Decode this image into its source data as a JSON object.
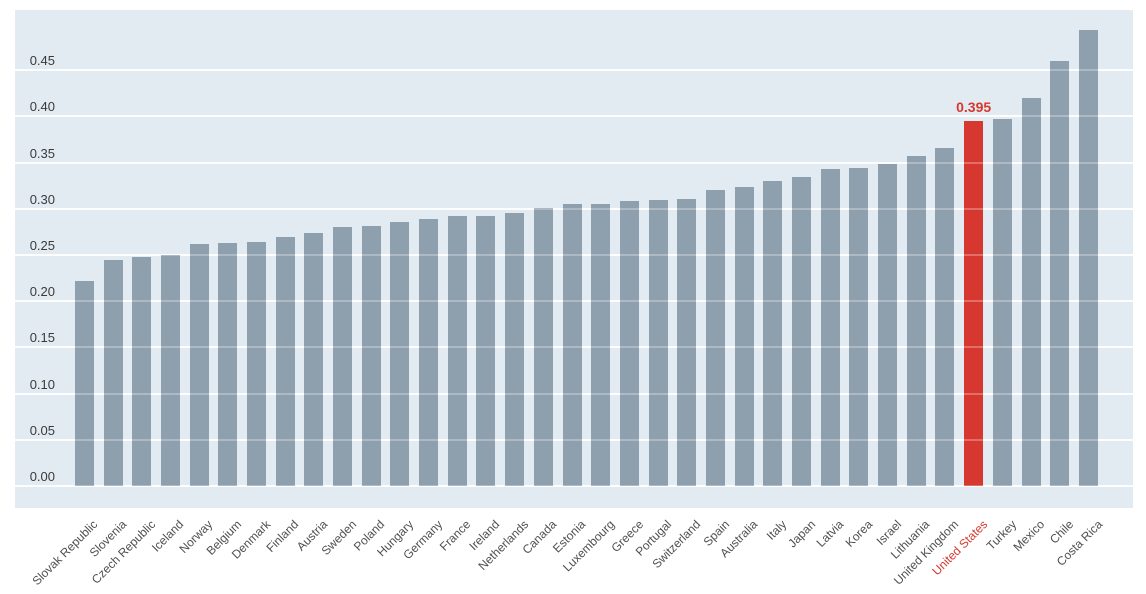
{
  "chart_data": {
    "type": "bar",
    "title": "",
    "xlabel": "",
    "ylabel": "",
    "categories": [
      "Slovak Republic",
      "Slovenia",
      "Czech Republic",
      "Iceland",
      "Norway",
      "Belgium",
      "Denmark",
      "Finland",
      "Austria",
      "Sweden",
      "Poland",
      "Hungary",
      "Germany",
      "France",
      "Ireland",
      "Netherlands",
      "Canada",
      "Estonia",
      "Luxembourg",
      "Greece",
      "Portugal",
      "Switzerland",
      "Spain",
      "Australia",
      "Italy",
      "Japan",
      "Latvia",
      "Korea",
      "Israel",
      "Lithuania",
      "United Kingdom",
      "United States",
      "Turkey",
      "Mexico",
      "Chile",
      "Costa Rica"
    ],
    "values": [
      0.222,
      0.245,
      0.248,
      0.25,
      0.262,
      0.263,
      0.264,
      0.269,
      0.274,
      0.28,
      0.281,
      0.286,
      0.289,
      0.292,
      0.292,
      0.295,
      0.301,
      0.305,
      0.305,
      0.308,
      0.31,
      0.311,
      0.32,
      0.324,
      0.33,
      0.334,
      0.343,
      0.344,
      0.348,
      0.357,
      0.366,
      0.395,
      0.397,
      0.42,
      0.46,
      0.493
    ],
    "highlight": {
      "category": "United States",
      "value": 0.395,
      "label": "0.395"
    },
    "y_ticks": [
      "0.00",
      "0.05",
      "0.10",
      "0.15",
      "0.20",
      "0.25",
      "0.30",
      "0.35",
      "0.40",
      "0.45"
    ],
    "y_tick_step": 0.05,
    "ylim": [
      0,
      0.515
    ],
    "grid": true,
    "legend": "none",
    "colors": {
      "plot_background": "#e3ebf2",
      "bar": "#8e9fad",
      "highlight_bar": "#d6372e",
      "highlight_text": "#d6372e",
      "y_tick_text": "#3a3a3a",
      "x_label_text": "#4f4f4f"
    }
  }
}
